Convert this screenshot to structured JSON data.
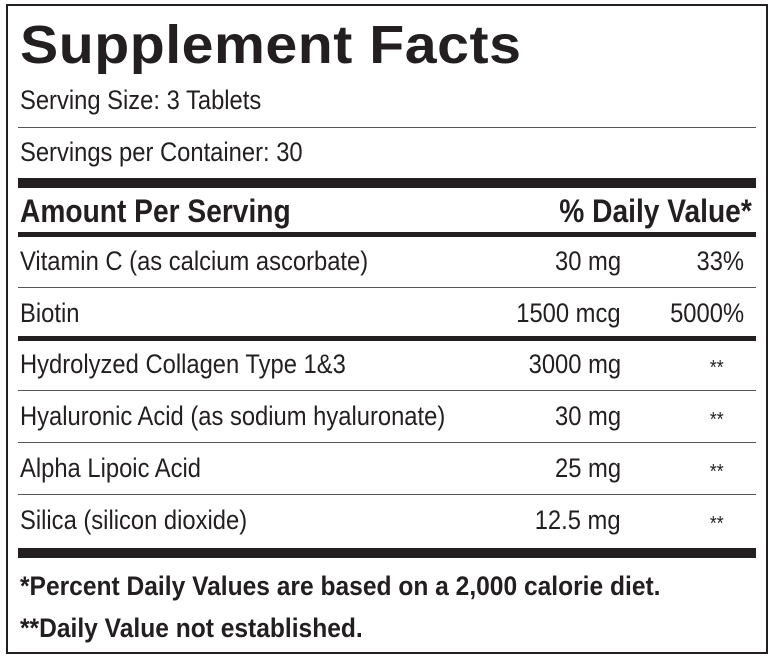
{
  "title": "Supplement Facts",
  "serving_size": "Serving Size: 3 Tablets",
  "servings_per_container": "Servings per Container: 30",
  "header": {
    "amount_label": "Amount Per Serving",
    "dv_label": "% Daily Value*"
  },
  "rows": [
    {
      "name": "Vitamin C (as calcium ascorbate)",
      "amount": "30 mg",
      "dv": "33%"
    },
    {
      "name": "Biotin",
      "amount": "1500 mcg",
      "dv": "5000%"
    },
    {
      "name": "Hydrolyzed Collagen Type 1&3",
      "amount": "3000 mg",
      "dv": "**"
    },
    {
      "name": "Hyaluronic Acid (as sodium hyaluronate)",
      "amount": "30 mg",
      "dv": "**"
    },
    {
      "name": "Alpha Lipoic Acid",
      "amount": "25 mg",
      "dv": "**"
    },
    {
      "name": "Silica (silicon dioxide)",
      "amount": "12.5 mg",
      "dv": "**"
    }
  ],
  "footnotes": [
    "*Percent Daily Values are based on a 2,000 calorie diet.",
    "**Daily Value not established."
  ]
}
